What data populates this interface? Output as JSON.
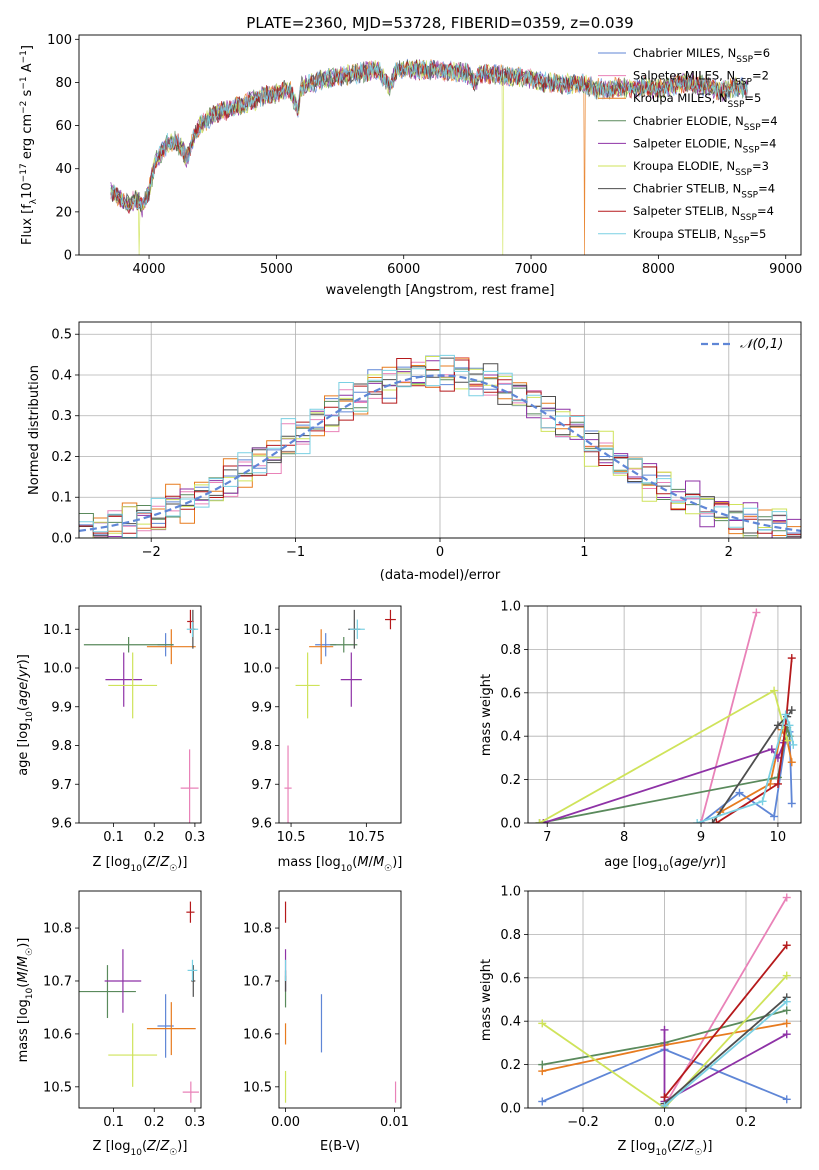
{
  "colors": {
    "Chabrier MILES": "#5f86d6",
    "Salpeter MILES": "#e982b8",
    "Kroupa MILES": "#e77b1f",
    "Chabrier ELODIE": "#5a8a5c",
    "Salpeter ELODIE": "#8e32a6",
    "Kroupa ELODIE": "#cfe35a",
    "Chabrier STELIB": "#4e4e4e",
    "Salpeter STELIB": "#b5191b",
    "Kroupa STELIB": "#7ad0e3"
  },
  "chart_data": [
    {
      "id": "spectrum",
      "type": "line",
      "title": "PLATE=2360, MJD=53728, FIBERID=0359, z=0.039",
      "xlabel": "wavelength [Angstrom, rest frame]",
      "ylabel": "Flux [f_λ 10^-17 erg cm^-2 s^-1 A^-1]",
      "xlim": [
        3450,
        9120
      ],
      "ylim": [
        0,
        102
      ],
      "xticks": [
        4000,
        5000,
        6000,
        7000,
        8000,
        9000
      ],
      "yticks": [
        0,
        20,
        40,
        60,
        80,
        100
      ],
      "grid": false,
      "legend_position": "top-right",
      "legend": [
        {
          "model": "Chabrier MILES",
          "label": "Chabrier MILES, N_SSP=6"
        },
        {
          "model": "Salpeter MILES",
          "label": "Salpeter MILES, N_SSP=2"
        },
        {
          "model": "Kroupa MILES",
          "label": "Kroupa MILES, N_SSP=5"
        },
        {
          "model": "Chabrier ELODIE",
          "label": "Chabrier ELODIE, N_SSP=4"
        },
        {
          "model": "Salpeter ELODIE",
          "label": "Salpeter ELODIE, N_SSP=4"
        },
        {
          "model": "Kroupa ELODIE",
          "label": "Kroupa ELODIE, N_SSP=3"
        },
        {
          "model": "Chabrier STELIB",
          "label": "Chabrier STELIB, N_SSP=4"
        },
        {
          "model": "Salpeter STELIB",
          "label": "Salpeter STELIB, N_SSP=4"
        },
        {
          "model": "Kroupa STELIB",
          "label": "Kroupa STELIB, N_SSP=5"
        }
      ],
      "continuum": {
        "x": [
          3700,
          3750,
          3800,
          3850,
          3900,
          3950,
          4000,
          4050,
          4100,
          4150,
          4200,
          4250,
          4300,
          4350,
          4400,
          4500,
          4600,
          4700,
          4800,
          4900,
          5000,
          5100,
          5170,
          5200,
          5300,
          5400,
          5500,
          5600,
          5700,
          5800,
          5890,
          5950,
          6000,
          6100,
          6200,
          6300,
          6400,
          6500,
          6563,
          6600,
          6700,
          6800,
          6900,
          7000,
          7100,
          7200,
          7300,
          7400,
          7500,
          7600,
          7700,
          7800,
          7900,
          8000,
          8200,
          8400,
          8500,
          8600,
          8700
        ],
        "y": [
          30,
          27,
          25,
          24,
          26,
          22,
          30,
          43,
          48,
          52,
          53,
          50,
          45,
          55,
          60,
          65,
          67,
          69,
          71,
          74,
          75,
          77,
          68,
          78,
          80,
          82,
          83,
          84,
          85,
          86,
          78,
          86,
          86,
          86,
          86,
          85,
          85,
          84,
          80,
          84,
          84,
          83,
          83,
          82,
          80,
          80,
          79,
          80,
          77,
          77,
          78,
          77,
          78,
          77,
          80,
          78,
          76,
          78,
          77
        ]
      },
      "artifact_drops": [
        {
          "model": "Kroupa ELODIE",
          "x": 3920
        },
        {
          "model": "Kroupa ELODIE",
          "x": 6780
        },
        {
          "model": "Kroupa MILES",
          "x": 7420
        }
      ]
    },
    {
      "id": "residuals",
      "type": "histogram",
      "xlabel": "(data-model)/error",
      "ylabel": "Normed distribution",
      "xlim": [
        -2.5,
        2.5
      ],
      "ylim": [
        0,
        0.53
      ],
      "xticks": [
        -2,
        -1,
        0,
        1,
        2
      ],
      "yticks": [
        0.0,
        0.1,
        0.2,
        0.3,
        0.4,
        0.5
      ],
      "grid": true,
      "bin_width": 0.1,
      "legend_position": "top-right",
      "legend": [
        {
          "label": "𝒩(0,1)",
          "style": "dashed"
        }
      ],
      "reference_curve": {
        "mean": 0,
        "sigma": 1,
        "color": "#5f86d6"
      },
      "series_models": [
        "Chabrier MILES",
        "Salpeter MILES",
        "Kroupa MILES",
        "Chabrier ELODIE",
        "Salpeter ELODIE",
        "Kroupa ELODIE",
        "Chabrier STELIB",
        "Salpeter STELIB",
        "Kroupa STELIB"
      ],
      "bin_offsets": [
        0.012,
        -0.018,
        0.025,
        -0.01,
        0.03,
        -0.025,
        0.015,
        -0.008,
        0.02,
        -0.03,
        0.01,
        0.028,
        -0.015,
        0.006,
        -0.022,
        0.018,
        -0.012,
        0.035,
        -0.02,
        0.008,
        0.045,
        -0.04,
        0.025,
        -0.006,
        0.04,
        -0.03,
        0.015,
        0.022,
        -0.018,
        0.01,
        -0.025,
        0.032,
        0.005,
        -0.035,
        0.02,
        0.028,
        -0.01,
        0.016,
        -0.028,
        0.012,
        0.03,
        -0.016,
        0.008,
        -0.02,
        0.024,
        -0.005,
        0.018,
        -0.012,
        0.01,
        -0.008
      ]
    },
    {
      "id": "age-vs-Z",
      "type": "errorbar",
      "xlabel": "Z [log10(Z/Z☉)]",
      "ylabel": "age [log10(age/yr)]",
      "xlim": [
        0.015,
        0.315
      ],
      "ylim": [
        9.6,
        10.16
      ],
      "xticks": [
        0.1,
        0.2,
        0.3
      ],
      "yticks": [
        9.6,
        9.7,
        9.8,
        9.9,
        10.0,
        10.1
      ],
      "grid": false,
      "points": [
        {
          "model": "Chabrier MILES",
          "x": 0.228,
          "y": 10.06,
          "xerr": 0.02,
          "yerr": 0.03
        },
        {
          "model": "Salpeter MILES",
          "x": 0.287,
          "y": 9.69,
          "xerr": 0.022,
          "yerr": 0.1
        },
        {
          "model": "Kroupa MILES",
          "x": 0.242,
          "y": 10.055,
          "xerr": 0.06,
          "yerr": 0.045
        },
        {
          "model": "Chabrier ELODIE",
          "x": 0.137,
          "y": 10.06,
          "xerr": 0.11,
          "yerr": 0.02
        },
        {
          "model": "Salpeter ELODIE",
          "x": 0.125,
          "y": 9.97,
          "xerr": 0.045,
          "yerr": 0.07
        },
        {
          "model": "Kroupa ELODIE",
          "x": 0.147,
          "y": 9.955,
          "xerr": 0.06,
          "yerr": 0.085
        },
        {
          "model": "Chabrier STELIB",
          "x": 0.295,
          "y": 10.1,
          "xerr": 0.006,
          "yerr": 0.05
        },
        {
          "model": "Salpeter STELIB",
          "x": 0.289,
          "y": 10.12,
          "xerr": 0.008,
          "yerr": 0.03
        },
        {
          "model": "Kroupa STELIB",
          "x": 0.294,
          "y": 10.1,
          "xerr": 0.014,
          "yerr": 0.02
        }
      ]
    },
    {
      "id": "age-vs-mass",
      "type": "errorbar",
      "xlabel": "mass [log10(M/M☉)]",
      "ylabel": "",
      "xlim": [
        10.46,
        10.865
      ],
      "ylim": [
        9.6,
        10.16
      ],
      "xticks": [
        10.5,
        10.75
      ],
      "yticks": [
        9.6,
        9.7,
        9.8,
        9.9,
        10.0,
        10.1
      ],
      "grid": false,
      "points": [
        {
          "model": "Chabrier MILES",
          "x": 10.615,
          "y": 10.06,
          "xerr": 0.035,
          "yerr": 0.03
        },
        {
          "model": "Salpeter MILES",
          "x": 10.49,
          "y": 9.69,
          "xerr": 0.012,
          "yerr": 0.11
        },
        {
          "model": "Kroupa MILES",
          "x": 10.6,
          "y": 10.055,
          "xerr": 0.04,
          "yerr": 0.045
        },
        {
          "model": "Chabrier ELODIE",
          "x": 10.675,
          "y": 10.06,
          "xerr": 0.045,
          "yerr": 0.02
        },
        {
          "model": "Salpeter ELODIE",
          "x": 10.7,
          "y": 9.97,
          "xerr": 0.035,
          "yerr": 0.07
        },
        {
          "model": "Kroupa ELODIE",
          "x": 10.555,
          "y": 9.955,
          "xerr": 0.04,
          "yerr": 0.085
        },
        {
          "model": "Chabrier STELIB",
          "x": 10.71,
          "y": 10.1,
          "xerr": 0.02,
          "yerr": 0.05
        },
        {
          "model": "Salpeter STELIB",
          "x": 10.83,
          "y": 10.125,
          "xerr": 0.018,
          "yerr": 0.025
        },
        {
          "model": "Kroupa STELIB",
          "x": 10.72,
          "y": 10.1,
          "xerr": 0.025,
          "yerr": 0.025
        }
      ]
    },
    {
      "id": "weight-vs-age",
      "type": "line",
      "xlabel": "age [log10(age/yr)]",
      "ylabel": "mass weight",
      "xlim": [
        6.75,
        10.3
      ],
      "ylim": [
        0,
        1.0
      ],
      "xticks": [
        7,
        8,
        9,
        10
      ],
      "yticks": [
        0.0,
        0.2,
        0.4,
        0.6,
        0.8,
        1.0
      ],
      "grid": true,
      "series": [
        {
          "model": "Chabrier MILES",
          "x": [
            9.0,
            9.5,
            9.95,
            10.1,
            10.15,
            10.18
          ],
          "y": [
            0.0,
            0.14,
            0.03,
            0.38,
            0.42,
            0.09
          ]
        },
        {
          "model": "Salpeter MILES",
          "x": [
            9.0,
            9.72
          ],
          "y": [
            0.0,
            0.97
          ]
        },
        {
          "model": "Kroupa MILES",
          "x": [
            9.25,
            9.9,
            10.05,
            10.12,
            10.18
          ],
          "y": [
            0.05,
            0.18,
            0.43,
            0.38,
            0.28
          ]
        },
        {
          "model": "Chabrier ELODIE",
          "x": [
            6.9,
            10.0,
            10.12,
            10.15
          ],
          "y": [
            0.0,
            0.21,
            0.44,
            0.4
          ]
        },
        {
          "model": "Salpeter ELODIE",
          "x": [
            6.95,
            9.92,
            10.0,
            10.08
          ],
          "y": [
            0.0,
            0.34,
            0.3,
            0.37
          ]
        },
        {
          "model": "Kroupa ELODIE",
          "x": [
            6.9,
            9.95,
            10.12
          ],
          "y": [
            0.0,
            0.61,
            0.38
          ]
        },
        {
          "model": "Chabrier STELIB",
          "x": [
            9.15,
            10.0,
            10.12,
            10.18
          ],
          "y": [
            0.0,
            0.45,
            0.49,
            0.52
          ]
        },
        {
          "model": "Salpeter STELIB",
          "x": [
            9.2,
            10.0,
            10.1,
            10.18
          ],
          "y": [
            0.0,
            0.18,
            0.45,
            0.76
          ]
        },
        {
          "model": "Kroupa STELIB",
          "x": [
            8.95,
            9.8,
            10.1,
            10.15,
            10.2
          ],
          "y": [
            0.0,
            0.1,
            0.5,
            0.45,
            0.36
          ]
        }
      ]
    },
    {
      "id": "mass-vs-Z",
      "type": "errorbar",
      "xlabel": "Z [log10(Z/Z☉)]",
      "ylabel": "mass [log10(M/M☉)]",
      "xlim": [
        0.015,
        0.315
      ],
      "ylim": [
        10.46,
        10.87
      ],
      "xticks": [
        0.1,
        0.2,
        0.3
      ],
      "yticks": [
        10.5,
        10.6,
        10.7,
        10.8
      ],
      "grid": false,
      "points": [
        {
          "model": "Chabrier MILES",
          "x": 0.228,
          "y": 10.615,
          "xerr": 0.02,
          "yerr": 0.06
        },
        {
          "model": "Salpeter MILES",
          "x": 0.29,
          "y": 10.49,
          "xerr": 0.02,
          "yerr": 0.02
        },
        {
          "model": "Kroupa MILES",
          "x": 0.242,
          "y": 10.61,
          "xerr": 0.06,
          "yerr": 0.05
        },
        {
          "model": "Chabrier ELODIE",
          "x": 0.085,
          "y": 10.68,
          "xerr": 0.07,
          "yerr": 0.05
        },
        {
          "model": "Salpeter ELODIE",
          "x": 0.123,
          "y": 10.7,
          "xerr": 0.045,
          "yerr": 0.06
        },
        {
          "model": "Kroupa ELODIE",
          "x": 0.147,
          "y": 10.56,
          "xerr": 0.06,
          "yerr": 0.06
        },
        {
          "model": "Chabrier STELIB",
          "x": 0.296,
          "y": 10.7,
          "xerr": 0.005,
          "yerr": 0.03
        },
        {
          "model": "Salpeter STELIB",
          "x": 0.289,
          "y": 10.83,
          "xerr": 0.01,
          "yerr": 0.02
        },
        {
          "model": "Kroupa STELIB",
          "x": 0.294,
          "y": 10.72,
          "xerr": 0.012,
          "yerr": 0.02
        }
      ]
    },
    {
      "id": "mass-vs-ebv",
      "type": "errorbar",
      "xlabel": "E(B-V)",
      "ylabel": "",
      "xlim": [
        -0.0006,
        0.0106
      ],
      "ylim": [
        10.46,
        10.87
      ],
      "xticks": [
        0.0,
        0.01
      ],
      "yticks": [
        10.5,
        10.6,
        10.7,
        10.8
      ],
      "grid": false,
      "points": [
        {
          "model": "Chabrier MILES",
          "x": 0.0033,
          "y": 10.62,
          "xerr": 0.0,
          "yerr": 0.055
        },
        {
          "model": "Salpeter MILES",
          "x": 0.0101,
          "y": 10.49,
          "xerr": 0.0,
          "yerr": 0.02
        },
        {
          "model": "Kroupa MILES",
          "x": 0.0,
          "y": 10.6,
          "xerr": 0.0,
          "yerr": 0.02
        },
        {
          "model": "Chabrier ELODIE",
          "x": 0.0,
          "y": 10.68,
          "xerr": 0.0,
          "yerr": 0.03
        },
        {
          "model": "Salpeter ELODIE",
          "x": 0.0,
          "y": 10.72,
          "xerr": 0.0,
          "yerr": 0.04
        },
        {
          "model": "Kroupa ELODIE",
          "x": 0.0,
          "y": 10.5,
          "xerr": 0.0,
          "yerr": 0.03
        },
        {
          "model": "Chabrier STELIB",
          "x": 0.0,
          "y": 10.7,
          "xerr": 0.0,
          "yerr": 0.02
        },
        {
          "model": "Salpeter STELIB",
          "x": 0.0,
          "y": 10.83,
          "xerr": 0.0,
          "yerr": 0.02
        },
        {
          "model": "Kroupa STELIB",
          "x": 0.0,
          "y": 10.72,
          "xerr": 0.0,
          "yerr": 0.02
        }
      ]
    },
    {
      "id": "weight-vs-Z",
      "type": "line",
      "xlabel": "Z [log10(Z/Z☉)]",
      "ylabel": "mass weight",
      "xlim": [
        -0.335,
        0.335
      ],
      "ylim": [
        0,
        1.0
      ],
      "xticks": [
        -0.2,
        0.0,
        0.2
      ],
      "yticks": [
        0.0,
        0.2,
        0.4,
        0.6,
        0.8,
        1.0
      ],
      "grid": true,
      "series": [
        {
          "model": "Chabrier MILES",
          "x": [
            -0.3,
            0.0,
            0.3
          ],
          "y": [
            0.03,
            0.27,
            0.04
          ]
        },
        {
          "model": "Salpeter MILES",
          "x": [
            0.0,
            0.3
          ],
          "y": [
            0.01,
            0.97
          ]
        },
        {
          "model": "Kroupa MILES",
          "x": [
            -0.3,
            0.0,
            0.3
          ],
          "y": [
            0.17,
            0.29,
            0.39
          ]
        },
        {
          "model": "Chabrier ELODIE",
          "x": [
            -0.3,
            0.0,
            0.3
          ],
          "y": [
            0.2,
            0.3,
            0.45
          ]
        },
        {
          "model": "Salpeter ELODIE",
          "x": [
            0.0,
            0.0,
            0.3
          ],
          "y": [
            0.36,
            0.03,
            0.34
          ]
        },
        {
          "model": "Kroupa ELODIE",
          "x": [
            -0.3,
            0.0,
            0.3
          ],
          "y": [
            0.39,
            0.0,
            0.61
          ]
        },
        {
          "model": "Chabrier STELIB",
          "x": [
            0.0,
            0.3
          ],
          "y": [
            0.02,
            0.51
          ]
        },
        {
          "model": "Salpeter STELIB",
          "x": [
            0.0,
            0.3
          ],
          "y": [
            0.05,
            0.75
          ]
        },
        {
          "model": "Kroupa STELIB",
          "x": [
            0.0,
            0.3
          ],
          "y": [
            0.01,
            0.49
          ]
        }
      ]
    }
  ]
}
